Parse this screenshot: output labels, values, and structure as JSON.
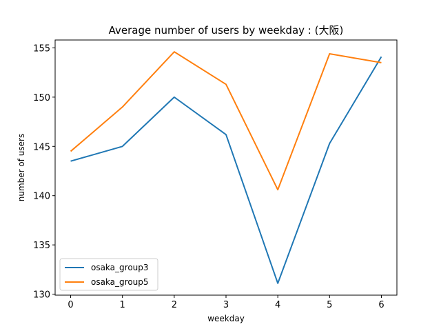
{
  "chart_data": {
    "type": "line",
    "title": "Average number of users by weekday : (大阪)",
    "xlabel": "weekday",
    "ylabel": "number of users",
    "x": [
      0,
      1,
      2,
      3,
      4,
      5,
      6
    ],
    "xticks": [
      "0",
      "1",
      "2",
      "3",
      "4",
      "5",
      "6"
    ],
    "yticks": [
      "130",
      "135",
      "140",
      "145",
      "150",
      "155"
    ],
    "xlim": [
      -0.3,
      6.3
    ],
    "ylim": [
      129.9,
      155.8
    ],
    "grid": false,
    "legend_position": "lower-left",
    "series": [
      {
        "name": "osaka_group3",
        "color": "#1f77b4",
        "values": [
          143.5,
          145.0,
          150.0,
          146.2,
          131.1,
          145.3,
          154.1
        ]
      },
      {
        "name": "osaka_group5",
        "color": "#ff7f0e",
        "values": [
          144.5,
          149.0,
          154.6,
          151.3,
          140.6,
          154.4,
          153.5
        ]
      }
    ]
  }
}
